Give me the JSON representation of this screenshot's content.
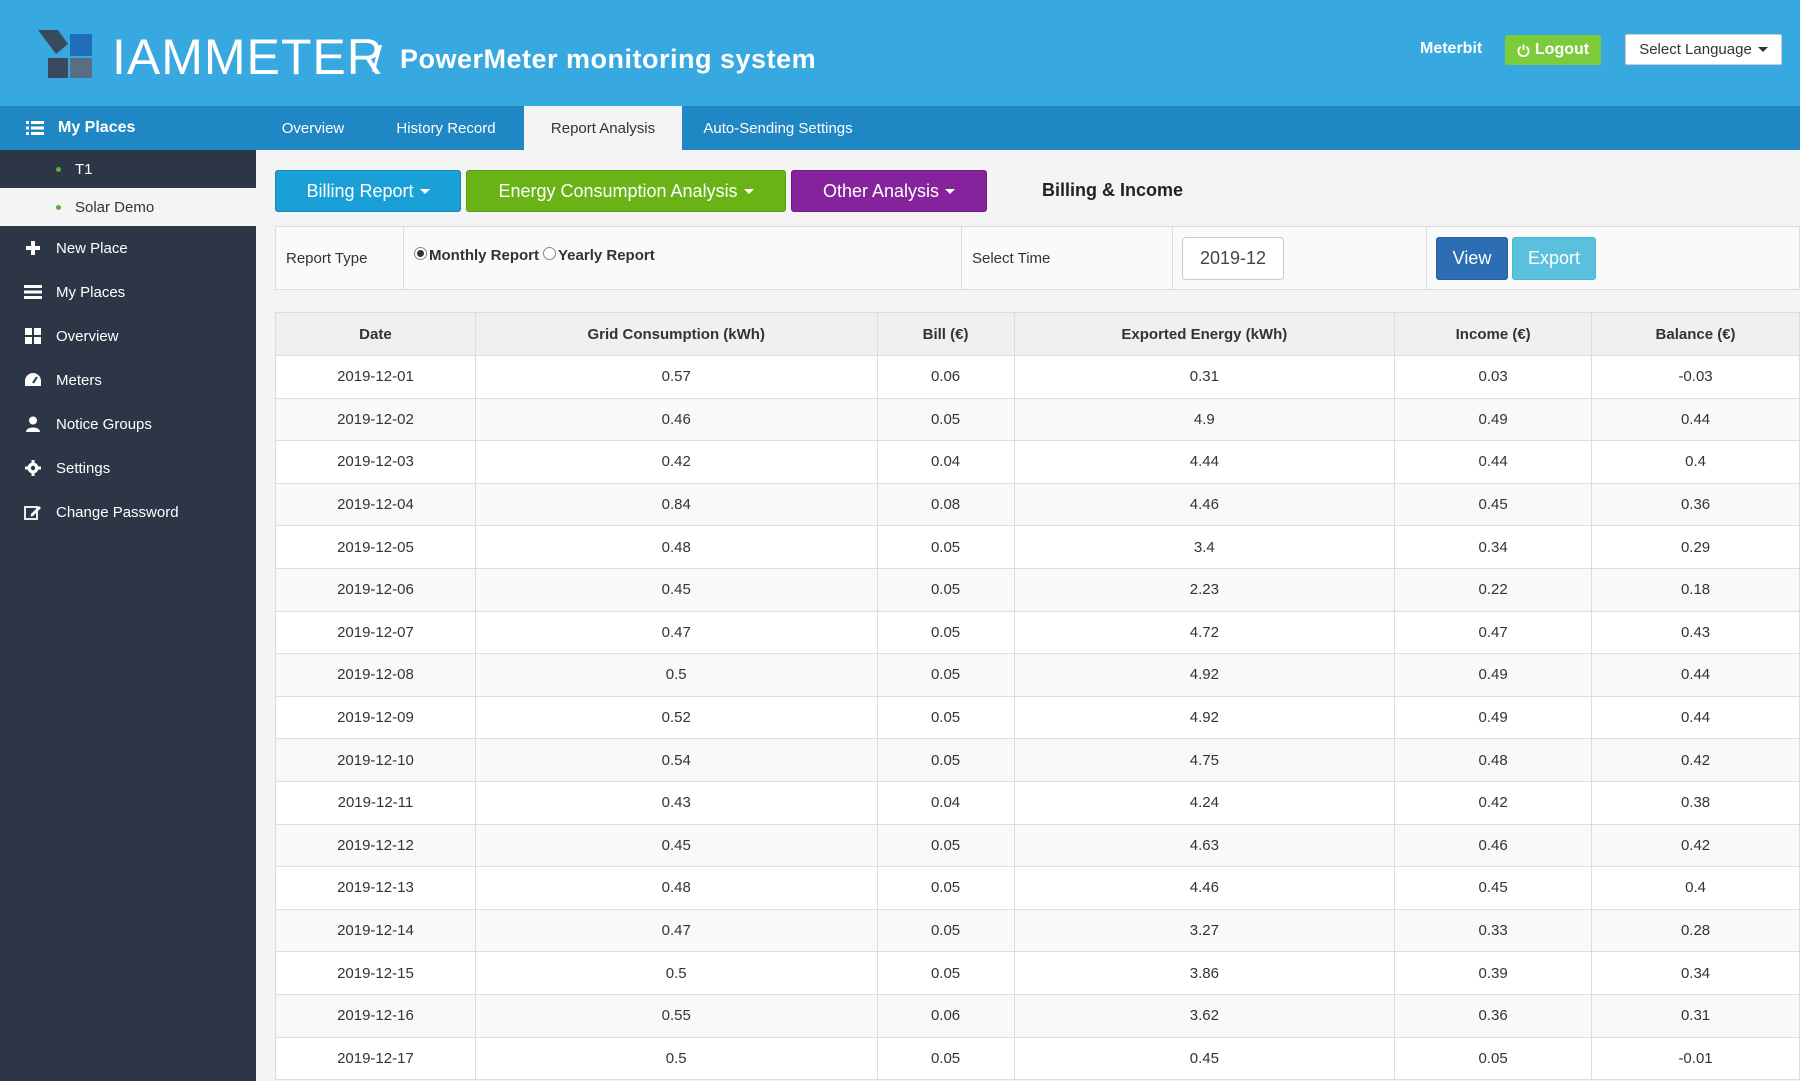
{
  "header": {
    "logo_text": "IAMMETER",
    "separator": "/",
    "app_title": "PowerMeter monitoring system",
    "user": "Meterbit",
    "logout_label": "Logout",
    "language_label": "Select Language",
    "brand_color": "#37a8e0"
  },
  "sidebar": {
    "head_label": "My Places",
    "places": [
      {
        "label": "T1"
      },
      {
        "label": "Solar Demo"
      }
    ],
    "items": [
      {
        "label": "New Place",
        "icon": "plus-icon"
      },
      {
        "label": "My Places",
        "icon": "list-icon"
      },
      {
        "label": "Overview",
        "icon": "grid-icon"
      },
      {
        "label": "Meters",
        "icon": "dashboard-icon"
      },
      {
        "label": "Notice Groups",
        "icon": "user-icon"
      },
      {
        "label": "Settings",
        "icon": "gear-icon"
      },
      {
        "label": "Change Password",
        "icon": "edit-icon"
      }
    ]
  },
  "tabs": [
    {
      "label": "Overview"
    },
    {
      "label": "History Record"
    },
    {
      "label": "Report Analysis",
      "active": true
    },
    {
      "label": "Auto-Sending Settings"
    }
  ],
  "toolbar": {
    "billing_report": "Billing Report",
    "energy_analysis": "Energy Consumption Analysis",
    "other_analysis": "Other Analysis",
    "section_title": "Billing & Income"
  },
  "filter": {
    "report_type_label": "Report Type",
    "monthly_label": "Monthly Report",
    "yearly_label": "Yearly Report",
    "selected": "monthly",
    "select_time_label": "Select Time",
    "time_value": "2019-12",
    "view_label": "View",
    "export_label": "Export"
  },
  "table": {
    "headers": [
      "Date",
      "Grid Consumption (kWh)",
      "Bill (€)",
      "Exported Energy (kWh)",
      "Income (€)",
      "Balance (€)"
    ],
    "rows": [
      [
        "2019-12-01",
        "0.57",
        "0.06",
        "0.31",
        "0.03",
        "-0.03"
      ],
      [
        "2019-12-02",
        "0.46",
        "0.05",
        "4.9",
        "0.49",
        "0.44"
      ],
      [
        "2019-12-03",
        "0.42",
        "0.04",
        "4.44",
        "0.44",
        "0.4"
      ],
      [
        "2019-12-04",
        "0.84",
        "0.08",
        "4.46",
        "0.45",
        "0.36"
      ],
      [
        "2019-12-05",
        "0.48",
        "0.05",
        "3.4",
        "0.34",
        "0.29"
      ],
      [
        "2019-12-06",
        "0.45",
        "0.05",
        "2.23",
        "0.22",
        "0.18"
      ],
      [
        "2019-12-07",
        "0.47",
        "0.05",
        "4.72",
        "0.47",
        "0.43"
      ],
      [
        "2019-12-08",
        "0.5",
        "0.05",
        "4.92",
        "0.49",
        "0.44"
      ],
      [
        "2019-12-09",
        "0.52",
        "0.05",
        "4.92",
        "0.49",
        "0.44"
      ],
      [
        "2019-12-10",
        "0.54",
        "0.05",
        "4.75",
        "0.48",
        "0.42"
      ],
      [
        "2019-12-11",
        "0.43",
        "0.04",
        "4.24",
        "0.42",
        "0.38"
      ],
      [
        "2019-12-12",
        "0.45",
        "0.05",
        "4.63",
        "0.46",
        "0.42"
      ],
      [
        "2019-12-13",
        "0.48",
        "0.05",
        "4.46",
        "0.45",
        "0.4"
      ],
      [
        "2019-12-14",
        "0.47",
        "0.05",
        "3.27",
        "0.33",
        "0.28"
      ],
      [
        "2019-12-15",
        "0.5",
        "0.05",
        "3.86",
        "0.39",
        "0.34"
      ],
      [
        "2019-12-16",
        "0.55",
        "0.06",
        "3.62",
        "0.36",
        "0.31"
      ],
      [
        "2019-12-17",
        "0.5",
        "0.05",
        "0.45",
        "0.05",
        "-0.01"
      ]
    ]
  }
}
